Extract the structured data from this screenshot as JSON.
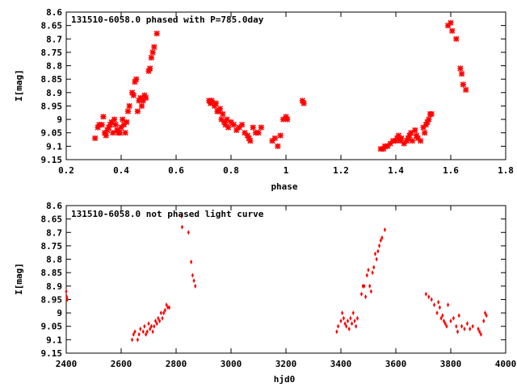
{
  "chart_data": [
    {
      "type": "scatter",
      "title": "131510-6058.0 phased with P=785.0day",
      "xlabel": "phase",
      "ylabel": "I[mag]",
      "xlim": [
        0.2,
        1.8
      ],
      "ylim": [
        9.15,
        8.6
      ],
      "y_inverted": true,
      "xticks": [
        "0.2",
        "0.4",
        "0.6",
        "0.8",
        "1",
        "1.2",
        "1.4",
        "1.6",
        "1.8"
      ],
      "yticks": [
        "8.6",
        "8.65",
        "8.7",
        "8.75",
        "8.8",
        "8.85",
        "8.9",
        "8.95",
        "9",
        "9.05",
        "9.1",
        "9.15"
      ],
      "marker_color": "#ff0000",
      "grid": false,
      "x": [
        0.305,
        0.315,
        0.32,
        0.33,
        0.335,
        0.34,
        0.345,
        0.35,
        0.355,
        0.36,
        0.365,
        0.37,
        0.375,
        0.38,
        0.385,
        0.39,
        0.395,
        0.4,
        0.405,
        0.41,
        0.415,
        0.42,
        0.425,
        0.43,
        0.44,
        0.445,
        0.45,
        0.455,
        0.46,
        0.465,
        0.47,
        0.475,
        0.48,
        0.485,
        0.49,
        0.5,
        0.505,
        0.51,
        0.515,
        0.52,
        0.53,
        0.72,
        0.725,
        0.73,
        0.74,
        0.745,
        0.75,
        0.755,
        0.76,
        0.765,
        0.77,
        0.775,
        0.78,
        0.785,
        0.79,
        0.8,
        0.81,
        0.82,
        0.83,
        0.84,
        0.85,
        0.86,
        0.865,
        0.87,
        0.88,
        0.89,
        0.9,
        0.91,
        0.95,
        0.96,
        0.97,
        0.98,
        0.99,
        1.0,
        1.005,
        1.06,
        1.065,
        1.345,
        1.355,
        1.36,
        1.37,
        1.38,
        1.39,
        1.4,
        1.405,
        1.41,
        1.415,
        1.42,
        1.43,
        1.44,
        1.445,
        1.45,
        1.455,
        1.46,
        1.47,
        1.475,
        1.48,
        1.49,
        1.5,
        1.505,
        1.51,
        1.515,
        1.52,
        1.525,
        1.53,
        1.59,
        1.6,
        1.605,
        1.62,
        1.635,
        1.64,
        1.645,
        1.655
      ],
      "y": [
        9.07,
        9.03,
        9.02,
        9.02,
        8.99,
        9.05,
        9.06,
        9.04,
        9.03,
        9.02,
        9.01,
        9.05,
        9.0,
        9.02,
        9.04,
        9.05,
        9.05,
        9.03,
        9.0,
        9.02,
        9.05,
        9.01,
        8.97,
        8.95,
        8.9,
        8.91,
        8.86,
        8.85,
        8.97,
        8.93,
        8.92,
        8.95,
        8.93,
        8.91,
        8.92,
        8.82,
        8.81,
        8.77,
        8.75,
        8.73,
        8.68,
        8.93,
        8.94,
        8.93,
        8.95,
        8.94,
        8.97,
        8.97,
        8.96,
        9.0,
        8.98,
        9.01,
        9.02,
        9.0,
        9.03,
        9.01,
        9.02,
        9.04,
        9.03,
        9.02,
        9.05,
        9.06,
        9.07,
        9.08,
        9.03,
        9.05,
        9.05,
        9.03,
        9.08,
        9.07,
        9.1,
        9.06,
        9.0,
        8.99,
        9.0,
        8.93,
        8.94,
        9.11,
        9.11,
        9.1,
        9.1,
        9.09,
        9.08,
        9.08,
        9.07,
        9.06,
        9.08,
        9.07,
        9.09,
        9.08,
        9.07,
        9.06,
        9.05,
        9.08,
        9.04,
        9.06,
        9.07,
        9.08,
        9.03,
        9.05,
        9.02,
        9.01,
        9.0,
        8.98,
        8.98,
        8.65,
        8.64,
        8.67,
        8.7,
        8.81,
        8.83,
        8.87,
        8.89
      ]
    },
    {
      "type": "scatter",
      "title": "131510-6058.0 not phased light curve",
      "xlabel": "hjd0",
      "ylabel": "I[mag]",
      "xlim": [
        2400,
        4000
      ],
      "ylim": [
        9.15,
        8.6
      ],
      "y_inverted": true,
      "xticks": [
        "2400",
        "2600",
        "2800",
        "3000",
        "3200",
        "3400",
        "3600",
        "3800",
        "4000"
      ],
      "yticks": [
        "8.6",
        "8.65",
        "8.7",
        "8.75",
        "8.8",
        "8.85",
        "8.9",
        "8.95",
        "9",
        "9.05",
        "9.1",
        "9.15"
      ],
      "marker_color": "#ff0000",
      "grid": false,
      "x": [
        2400,
        2402,
        2404,
        2640,
        2645,
        2650,
        2660,
        2665,
        2670,
        2680,
        2685,
        2690,
        2695,
        2700,
        2705,
        2710,
        2715,
        2720,
        2725,
        2730,
        2735,
        2740,
        2745,
        2750,
        2755,
        2760,
        2765,
        2770,
        2775,
        2820,
        2822,
        2845,
        2855,
        2860,
        2865,
        2870,
        3385,
        3390,
        3400,
        3405,
        3410,
        3415,
        3420,
        3425,
        3430,
        3435,
        3440,
        3445,
        3450,
        3455,
        3460,
        3475,
        3480,
        3485,
        3490,
        3495,
        3500,
        3505,
        3510,
        3515,
        3520,
        3525,
        3530,
        3535,
        3540,
        3545,
        3550,
        3560,
        3710,
        3720,
        3730,
        3740,
        3750,
        3755,
        3760,
        3765,
        3770,
        3775,
        3780,
        3785,
        3790,
        3800,
        3810,
        3820,
        3825,
        3830,
        3840,
        3850,
        3860,
        3870,
        3880,
        3900,
        3905,
        3910,
        3920,
        3925,
        3930
      ],
      "y": [
        8.92,
        8.94,
        8.95,
        9.1,
        9.08,
        9.07,
        9.1,
        9.08,
        9.06,
        9.07,
        9.05,
        9.08,
        9.07,
        9.04,
        9.06,
        9.05,
        9.07,
        9.05,
        9.03,
        9.04,
        9.02,
        9.03,
        9.0,
        9.02,
        9.0,
        8.99,
        8.97,
        8.98,
        8.98,
        8.64,
        8.68,
        8.7,
        8.81,
        8.86,
        8.88,
        8.9,
        9.07,
        9.05,
        9.03,
        9.0,
        9.02,
        9.04,
        9.05,
        9.03,
        9.06,
        9.02,
        9.04,
        9.0,
        9.03,
        9.05,
        9.02,
        8.93,
        8.9,
        8.9,
        8.94,
        8.86,
        8.84,
        8.9,
        8.92,
        8.85,
        8.83,
        8.78,
        8.8,
        8.77,
        8.75,
        8.73,
        8.72,
        8.69,
        8.93,
        8.94,
        8.95,
        8.97,
        9.0,
        8.96,
        8.98,
        9.02,
        9.01,
        9.03,
        9.04,
        9.05,
        8.97,
        9.03,
        9.02,
        9.05,
        9.07,
        9.01,
        9.05,
        9.06,
        9.04,
        9.06,
        9.05,
        9.06,
        9.07,
        9.08,
        9.03,
        9.0,
        9.01
      ]
    }
  ]
}
